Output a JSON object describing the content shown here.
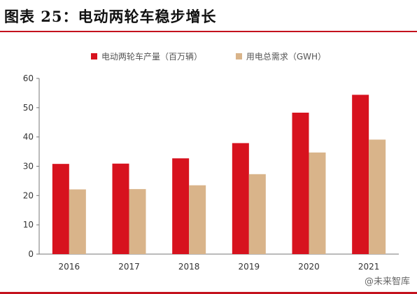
{
  "title": "图表 25：电动两轮车稳步增长",
  "watermark": "@未来智库",
  "chart_data": {
    "type": "bar",
    "categories": [
      "2016",
      "2017",
      "2018",
      "2019",
      "2020",
      "2021"
    ],
    "series": [
      {
        "name": "电动两轮车产量（百万辆）",
        "color": "#d7121e",
        "values": [
          30.8,
          30.9,
          32.7,
          37.9,
          48.3,
          54.4
        ]
      },
      {
        "name": "用电总需求（GWH）",
        "color": "#d9b48a",
        "values": [
          22.1,
          22.2,
          23.5,
          27.3,
          34.7,
          39.1
        ]
      }
    ],
    "ylim": [
      0,
      60
    ],
    "yticks": [
      0,
      10,
      20,
      30,
      40,
      50,
      60
    ],
    "xlabel": "",
    "ylabel": "",
    "legend": "top-center",
    "grid": false
  }
}
